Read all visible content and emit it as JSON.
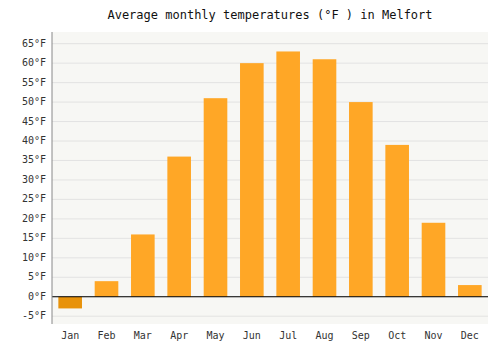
{
  "chart_data": {
    "type": "bar",
    "title": "Average monthly temperatures (°F ) in Melfort",
    "categories": [
      "Jan",
      "Feb",
      "Mar",
      "Apr",
      "May",
      "Jun",
      "Jul",
      "Aug",
      "Sep",
      "Oct",
      "Nov",
      "Dec"
    ],
    "values": [
      -3,
      4,
      16,
      36,
      51,
      60,
      63,
      61,
      50,
      39,
      19,
      3
    ],
    "colors": [
      "#E8920A",
      "#FFA726",
      "#FFA726",
      "#FFA726",
      "#FFA726",
      "#FFA726",
      "#FFA726",
      "#FFA726",
      "#FFA726",
      "#FFA726",
      "#FFA726",
      "#FFA726"
    ],
    "ylim": [
      -7,
      68
    ],
    "yticks": [
      {
        "value": -5,
        "label": "-5°F"
      },
      {
        "value": 0,
        "label": "0°F"
      },
      {
        "value": 5,
        "label": "5°F"
      },
      {
        "value": 10,
        "label": "10°F"
      },
      {
        "value": 15,
        "label": "15°F"
      },
      {
        "value": 20,
        "label": "20°F"
      },
      {
        "value": 25,
        "label": "25°F"
      },
      {
        "value": 30,
        "label": "30°F"
      },
      {
        "value": 35,
        "label": "35°F"
      },
      {
        "value": 40,
        "label": "40°F"
      },
      {
        "value": 45,
        "label": "45°F"
      },
      {
        "value": 50,
        "label": "50°F"
      },
      {
        "value": 55,
        "label": "55°F"
      },
      {
        "value": 60,
        "label": "60°F"
      },
      {
        "value": 65,
        "label": "65°F"
      }
    ],
    "grid": true
  }
}
